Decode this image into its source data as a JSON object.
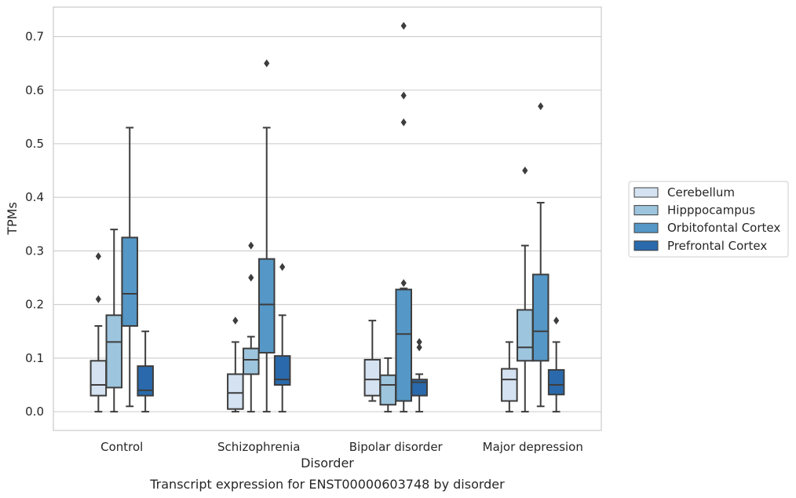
{
  "chart_data": {
    "type": "boxplot",
    "caption": "Transcript expression for ENST00000603748 by disorder",
    "xlabel": "Disorder",
    "ylabel": "TPMs",
    "ylim": [
      -0.035,
      0.755
    ],
    "yticks": [
      0.0,
      0.1,
      0.2,
      0.3,
      0.4,
      0.5,
      0.6,
      0.7
    ],
    "ytick_labels": [
      "0.0",
      "0.1",
      "0.2",
      "0.3",
      "0.4",
      "0.5",
      "0.6",
      "0.7"
    ],
    "grid": "horizontal",
    "legend_position": "right",
    "categories": [
      "Control",
      "Schizophrenia",
      "Bipolar disorder",
      "Major depression"
    ],
    "series": [
      {
        "name": "Cerebellum",
        "color": "#d4e2f1",
        "boxes": [
          {
            "whislo": 0.0,
            "q1": 0.03,
            "median": 0.05,
            "q3": 0.095,
            "whishi": 0.16,
            "fliers": [
              0.21,
              0.29
            ]
          },
          {
            "whislo": 0.0,
            "q1": 0.005,
            "median": 0.035,
            "q3": 0.07,
            "whishi": 0.13,
            "fliers": [
              0.17
            ]
          },
          {
            "whislo": 0.02,
            "q1": 0.03,
            "median": 0.06,
            "q3": 0.097,
            "whishi": 0.17,
            "fliers": []
          },
          {
            "whislo": 0.0,
            "q1": 0.02,
            "median": 0.06,
            "q3": 0.08,
            "whishi": 0.13,
            "fliers": []
          }
        ]
      },
      {
        "name": "Hipppocampus",
        "color": "#9dc5de",
        "boxes": [
          {
            "whislo": 0.0,
            "q1": 0.045,
            "median": 0.13,
            "q3": 0.18,
            "whishi": 0.34,
            "fliers": []
          },
          {
            "whislo": 0.0,
            "q1": 0.07,
            "median": 0.097,
            "q3": 0.118,
            "whishi": 0.14,
            "fliers": [
              0.25,
              0.31
            ]
          },
          {
            "whislo": 0.0,
            "q1": 0.013,
            "median": 0.05,
            "q3": 0.068,
            "whishi": 0.1,
            "fliers": []
          },
          {
            "whislo": 0.0,
            "q1": 0.095,
            "median": 0.12,
            "q3": 0.19,
            "whishi": 0.31,
            "fliers": [
              0.45
            ]
          }
        ]
      },
      {
        "name": "Orbitofontal Cortex",
        "color": "#5597c6",
        "boxes": [
          {
            "whislo": 0.01,
            "q1": 0.16,
            "median": 0.22,
            "q3": 0.325,
            "whishi": 0.53,
            "fliers": []
          },
          {
            "whislo": 0.0,
            "q1": 0.11,
            "median": 0.2,
            "q3": 0.285,
            "whishi": 0.53,
            "fliers": [
              0.65
            ]
          },
          {
            "whislo": 0.0,
            "q1": 0.02,
            "median": 0.145,
            "q3": 0.228,
            "whishi": 0.23,
            "fliers": [
              0.24,
              0.54,
              0.59,
              0.72
            ]
          },
          {
            "whislo": 0.01,
            "q1": 0.095,
            "median": 0.15,
            "q3": 0.256,
            "whishi": 0.39,
            "fliers": [
              0.57
            ]
          }
        ]
      },
      {
        "name": "Prefrontal Cortex",
        "color": "#2a6aac",
        "boxes": [
          {
            "whislo": 0.0,
            "q1": 0.03,
            "median": 0.04,
            "q3": 0.085,
            "whishi": 0.15,
            "fliers": []
          },
          {
            "whislo": 0.0,
            "q1": 0.05,
            "median": 0.06,
            "q3": 0.104,
            "whishi": 0.18,
            "fliers": [
              0.27
            ]
          },
          {
            "whislo": 0.0,
            "q1": 0.03,
            "median": 0.055,
            "q3": 0.06,
            "whishi": 0.07,
            "fliers": [
              0.12,
              0.13
            ]
          },
          {
            "whislo": 0.0,
            "q1": 0.032,
            "median": 0.05,
            "q3": 0.078,
            "whishi": 0.13,
            "fliers": [
              0.17
            ]
          }
        ]
      }
    ]
  }
}
